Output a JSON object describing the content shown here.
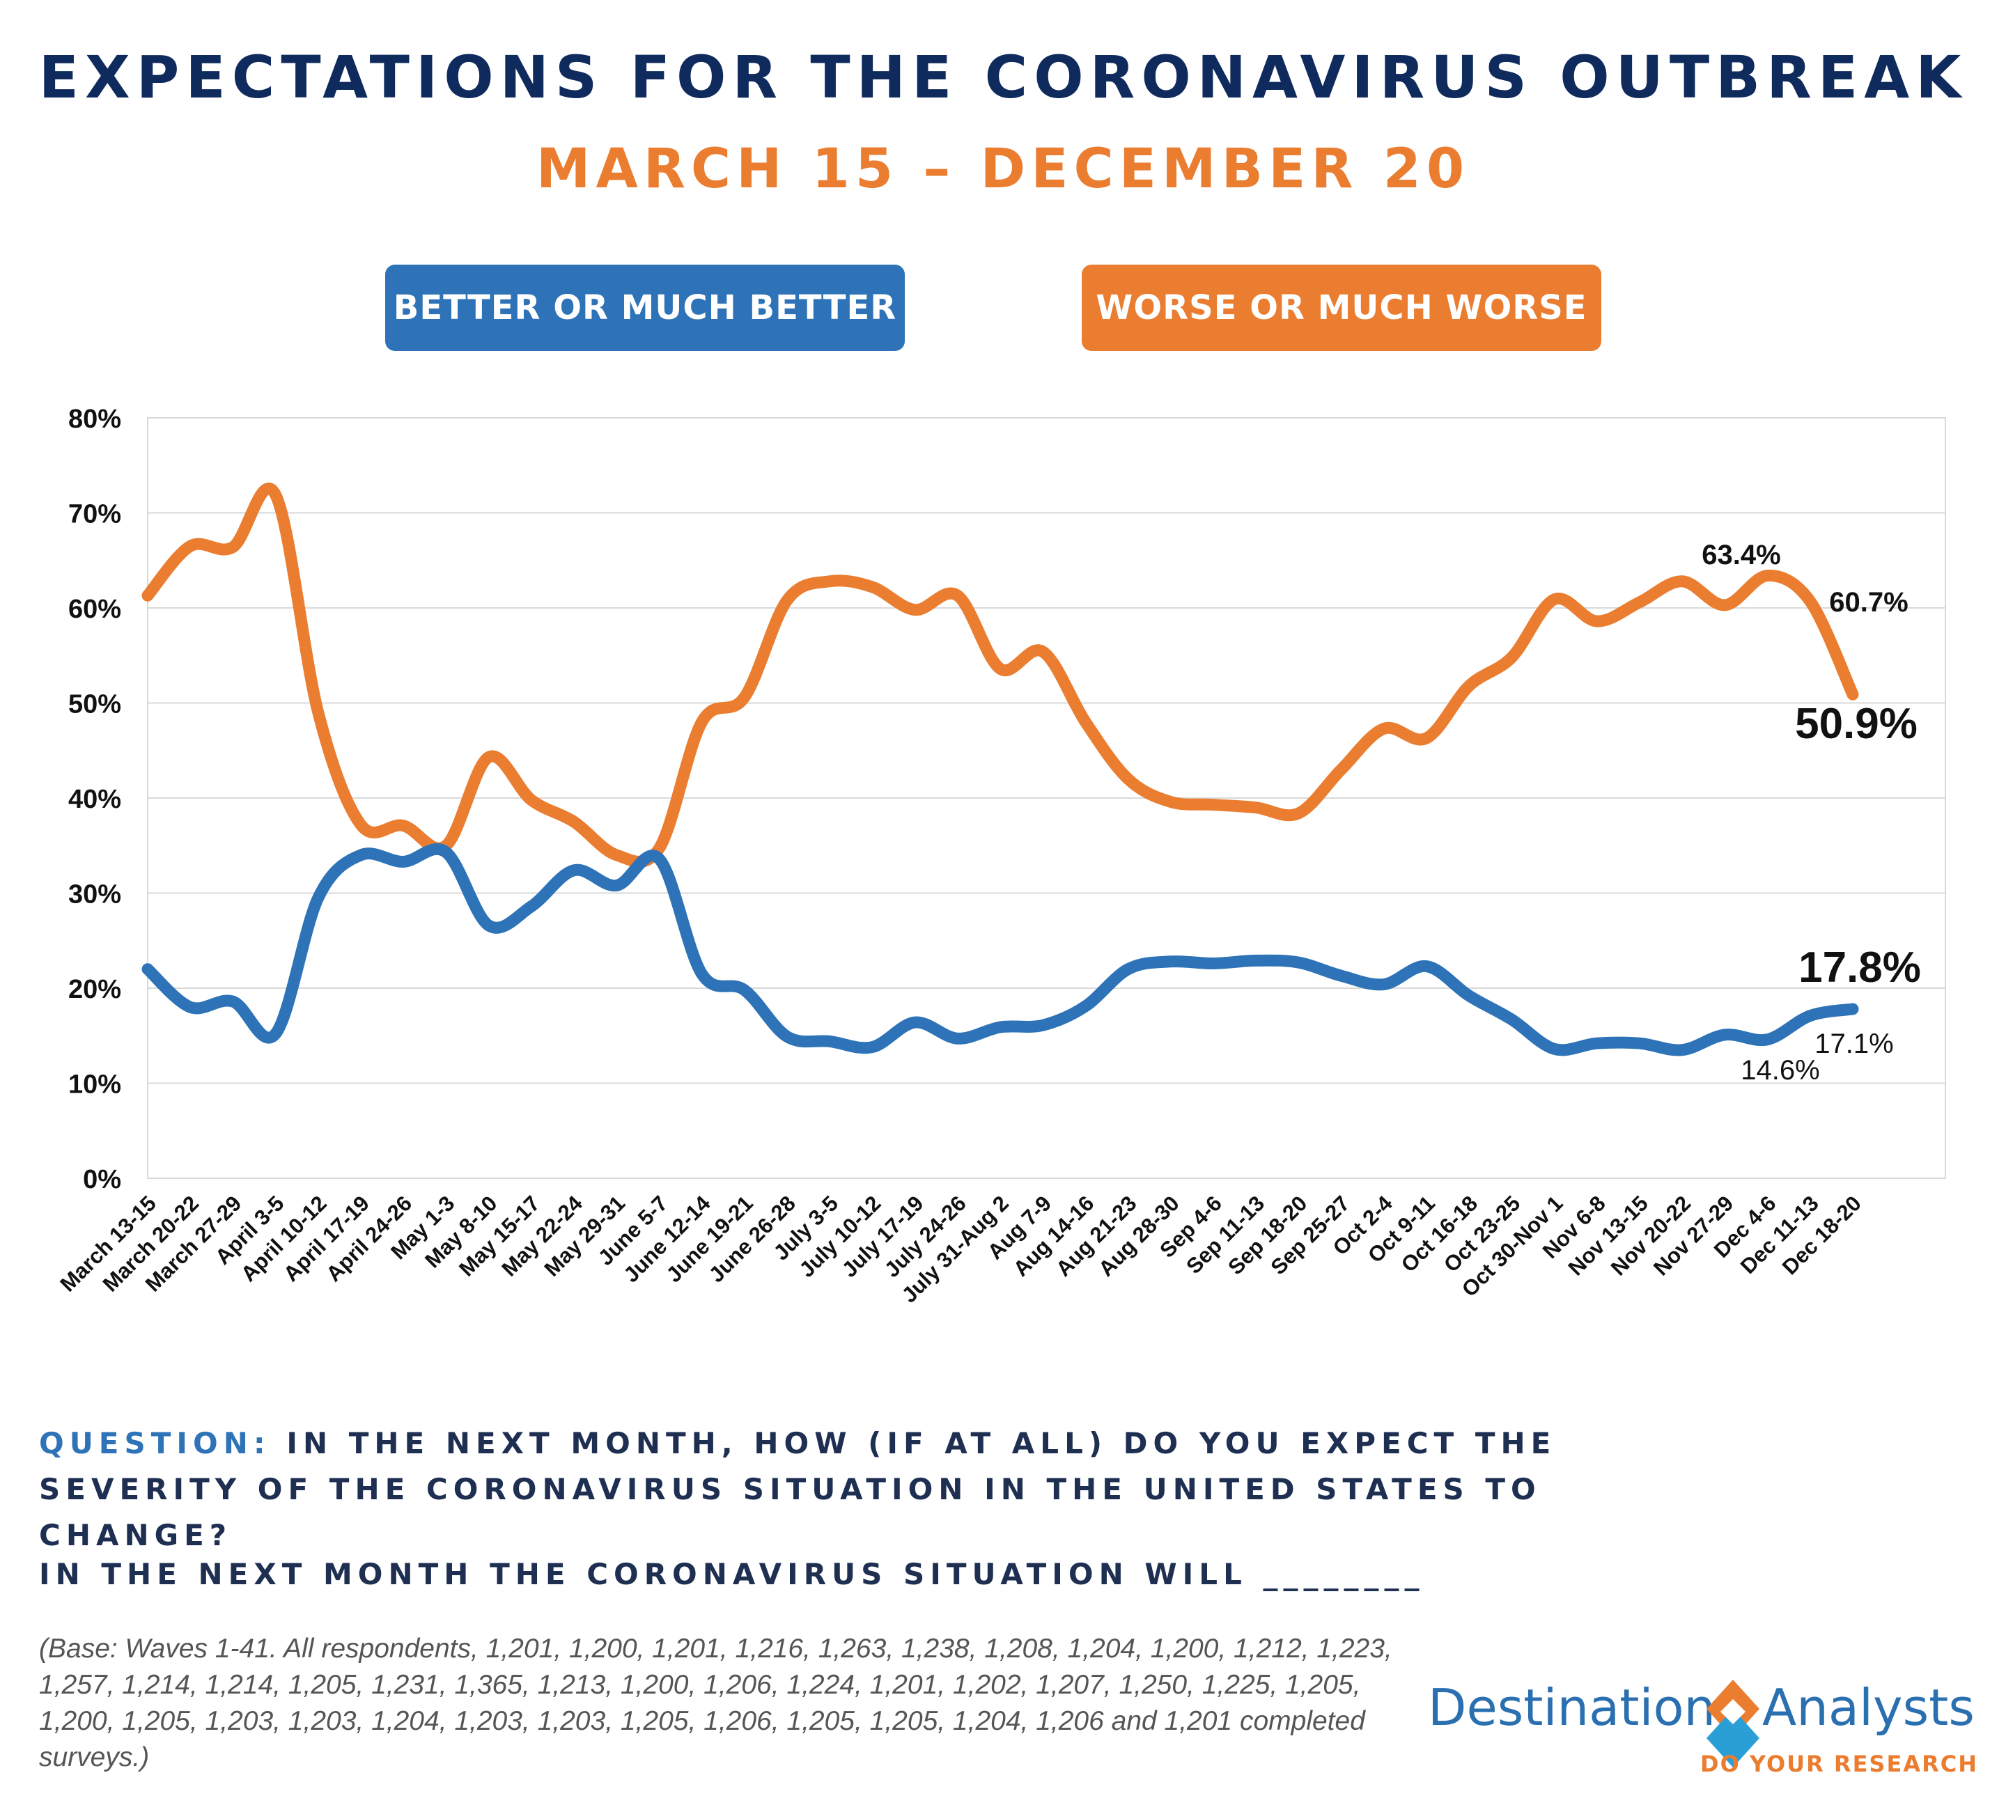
{
  "header": {
    "title": "EXPECTATIONS FOR THE CORONAVIRUS OUTBREAK",
    "subtitle": "MARCH 15 – DECEMBER 20"
  },
  "legend": {
    "better_label": "BETTER OR MUCH BETTER",
    "worse_label": "WORSE OR MUCH WORSE"
  },
  "colors": {
    "better": "#2e73b7",
    "worse": "#ea7d30",
    "title": "#0f2a5c",
    "grid": "#d9d9d9"
  },
  "chart_data": {
    "type": "line",
    "ylim": [
      0,
      80
    ],
    "yticks": [
      "0%",
      "10%",
      "20%",
      "30%",
      "40%",
      "50%",
      "60%",
      "70%",
      "80%"
    ],
    "grid": true,
    "categories": [
      "March 13-15",
      "March 20-22",
      "March 27-29",
      "April 3-5",
      "April 10-12",
      "April 17-19",
      "April 24-26",
      "May 1-3",
      "May 8-10",
      "May 15-17",
      "May 22-24",
      "May 29-31",
      "June 5-7",
      "June 12-14",
      "June 19-21",
      "June 26-28",
      "July 3-5",
      "July 10-12",
      "July 17-19",
      "July 24-26",
      "July 31-Aug 2",
      "Aug 7-9",
      "Aug 14-16",
      "Aug 21-23",
      "Aug 28-30",
      "Sep 4-6",
      "Sep 11-13",
      "Sep 18-20",
      "Sep 25-27",
      "Oct 2-4",
      "Oct 9-11",
      "Oct 16-18",
      "Oct 23-25",
      "Oct 30-Nov 1",
      "Nov 6-8",
      "Nov 13-15",
      "Nov 20-22",
      "Nov 27-29",
      "Dec 4-6",
      "Dec 11-13",
      "Dec 18-20"
    ],
    "series": [
      {
        "key": "worse",
        "values": [
          61.3,
          66.5,
          66.4,
          71.9,
          49.0,
          37.2,
          37.1,
          35.0,
          44.3,
          39.8,
          37.5,
          34.0,
          34.7,
          48.0,
          50.6,
          60.8,
          62.8,
          62.2,
          59.8,
          61.3,
          53.6,
          55.4,
          48.0,
          42.0,
          39.6,
          39.3,
          39.0,
          38.4,
          43.0,
          47.3,
          46.3,
          51.8,
          54.8,
          60.9,
          58.6,
          60.6,
          62.8,
          60.3,
          63.4,
          60.7,
          50.9
        ]
      },
      {
        "key": "better",
        "values": [
          22.0,
          18.0,
          18.6,
          15.2,
          29.5,
          34.0,
          33.3,
          34.3,
          26.6,
          28.6,
          32.4,
          30.8,
          33.6,
          21.5,
          19.8,
          14.9,
          14.4,
          13.8,
          16.4,
          14.7,
          15.9,
          16.1,
          18.1,
          22.0,
          22.8,
          22.6,
          22.9,
          22.7,
          21.3,
          20.4,
          22.3,
          19.2,
          16.7,
          13.6,
          14.2,
          14.2,
          13.5,
          15.1,
          14.6,
          17.1,
          17.8
        ]
      }
    ],
    "annotations": {
      "worse_peak": "63.4%",
      "worse_prev": "60.7%",
      "worse_last": "50.9%",
      "better_last": "17.8%",
      "better_prev": "17.1%",
      "better_low": "14.6%"
    }
  },
  "question": {
    "label": "QUESTION:",
    "text": "IN THE NEXT MONTH, HOW (IF AT ALL) DO YOU EXPECT THE SEVERITY OF THE CORONAVIRUS SITUATION IN THE UNITED STATES TO CHANGE?",
    "blank_line": "IN THE NEXT MONTH THE CORONAVIRUS SITUATION WILL ________"
  },
  "base_note": "(Base: Waves 1-41. All respondents, 1,201, 1,200, 1,201, 1,216, 1,263, 1,238, 1,208, 1,204, 1,200, 1,212, 1,223, 1,257, 1,214, 1,214, 1,205, 1,231, 1,365, 1,213, 1,200, 1,206, 1,224, 1,201, 1,202, 1,207, 1,250, 1,225, 1,205, 1,200, 1,205, 1,203, 1,203, 1,204, 1,203, 1,203, 1,205, 1,206, 1,205, 1,205, 1,204, 1,206 and 1,201 completed surveys.)",
  "logo": {
    "left": "Destination",
    "right": "Analysts",
    "tagline": "DO YOUR RESEARCH"
  }
}
